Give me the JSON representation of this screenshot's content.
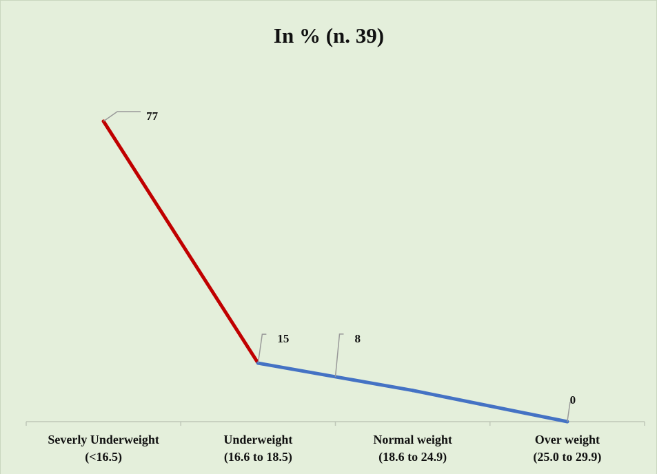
{
  "chart_data": {
    "type": "line",
    "title": "In % (n. 39)",
    "categories": [
      [
        "Severly Underweight",
        "(<16.5)"
      ],
      [
        "Underweight",
        "(16.6 to 18.5)"
      ],
      [
        "Normal weight",
        "(18.6 to 24.9)"
      ],
      [
        "Over weight",
        "(25.0 to 29.9)"
      ]
    ],
    "values": [
      77,
      15,
      8,
      0
    ],
    "segment_colors": [
      "#c00000",
      "#4472c4",
      "#4472c4"
    ]
  }
}
